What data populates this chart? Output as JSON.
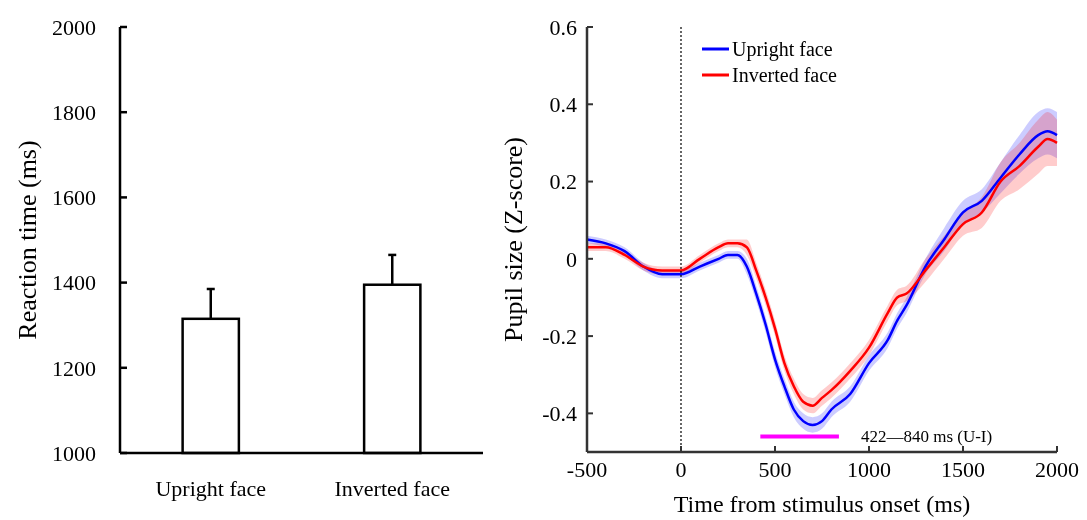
{
  "chart_data": [
    {
      "type": "bar",
      "ylabel": "Reaction time (ms)",
      "categories": [
        "Upright face",
        "Inverted face"
      ],
      "values": [
        1315,
        1395
      ],
      "color": "#ffffff",
      "errors": [
        [
          1315,
          1385
        ],
        [
          1395,
          1465
        ]
      ],
      "ylim": [
        1000,
        2000
      ],
      "yticks": [
        1000,
        1200,
        1400,
        1600,
        1800,
        2000
      ]
    },
    {
      "type": "line",
      "xlabel": "Time from stimulus onset (ms)",
      "ylabel": "Pupil size (Z-score)",
      "x": [
        -500,
        -400,
        -300,
        -200,
        -100,
        0,
        100,
        200,
        250,
        300,
        350,
        400,
        450,
        500,
        550,
        600,
        650,
        700,
        750,
        800,
        900,
        1000,
        1100,
        1150,
        1200,
        1300,
        1400,
        1500,
        1600,
        1700,
        1800,
        1900,
        1950,
        2000
      ],
      "series": [
        {
          "name": "Upright face",
          "color": "#0000ff",
          "values": [
            0.05,
            0.04,
            0.02,
            -0.02,
            -0.04,
            -0.04,
            -0.02,
            0,
            0.01,
            0.01,
            -0.02,
            -0.09,
            -0.17,
            -0.26,
            -0.33,
            -0.39,
            -0.42,
            -0.43,
            -0.42,
            -0.39,
            -0.35,
            -0.27,
            -0.21,
            -0.16,
            -0.12,
            -0.02,
            0.05,
            0.12,
            0.15,
            0.21,
            0.27,
            0.32,
            0.33,
            0.32
          ],
          "lower": [
            0.04,
            0.03,
            0.01,
            -0.03,
            -0.05,
            -0.05,
            -0.03,
            -0.01,
            0,
            0,
            -0.04,
            -0.11,
            -0.19,
            -0.28,
            -0.35,
            -0.41,
            -0.44,
            -0.45,
            -0.44,
            -0.41,
            -0.37,
            -0.29,
            -0.23,
            -0.18,
            -0.14,
            -0.04,
            0.02,
            0.09,
            0.12,
            0.17,
            0.22,
            0.26,
            0.27,
            0.26
          ],
          "upper": [
            0.06,
            0.05,
            0.03,
            -0.01,
            -0.03,
            -0.03,
            -0.01,
            0.01,
            0.02,
            0.02,
            0,
            -0.07,
            -0.15,
            -0.24,
            -0.31,
            -0.37,
            -0.4,
            -0.41,
            -0.4,
            -0.37,
            -0.33,
            -0.25,
            -0.19,
            -0.14,
            -0.1,
            0,
            0.08,
            0.15,
            0.18,
            0.25,
            0.32,
            0.38,
            0.39,
            0.38
          ]
        },
        {
          "name": "Inverted face",
          "color": "#ff0000",
          "values": [
            0.03,
            0.03,
            0.01,
            -0.02,
            -0.03,
            -0.03,
            0,
            0.03,
            0.04,
            0.04,
            0.03,
            -0.03,
            -0.1,
            -0.18,
            -0.27,
            -0.33,
            -0.37,
            -0.38,
            -0.36,
            -0.34,
            -0.29,
            -0.23,
            -0.14,
            -0.1,
            -0.09,
            -0.03,
            0.03,
            0.09,
            0.12,
            0.2,
            0.24,
            0.29,
            0.31,
            0.3
          ],
          "lower": [
            0.02,
            0.02,
            0,
            -0.03,
            -0.04,
            -0.04,
            -0.01,
            0.02,
            0.03,
            0.03,
            0.01,
            -0.05,
            -0.12,
            -0.2,
            -0.29,
            -0.35,
            -0.39,
            -0.4,
            -0.38,
            -0.36,
            -0.31,
            -0.25,
            -0.16,
            -0.12,
            -0.11,
            -0.06,
            0,
            0.06,
            0.08,
            0.15,
            0.18,
            0.22,
            0.24,
            0.24
          ],
          "upper": [
            0.04,
            0.04,
            0.02,
            -0.01,
            -0.02,
            -0.02,
            0.01,
            0.04,
            0.05,
            0.05,
            0.05,
            -0.01,
            -0.08,
            -0.16,
            -0.25,
            -0.31,
            -0.35,
            -0.36,
            -0.34,
            -0.32,
            -0.27,
            -0.21,
            -0.12,
            -0.08,
            -0.07,
            0,
            0.06,
            0.12,
            0.16,
            0.25,
            0.3,
            0.36,
            0.38,
            0.36
          ]
        },
        {
          "color": "#ff00ff",
          "x": [
            422,
            840
          ],
          "values": [
            -0.46,
            -0.46
          ]
        }
      ],
      "xlim": [
        -500,
        2000
      ],
      "xticks": [
        -500,
        0,
        500,
        1000,
        1500,
        2000
      ],
      "ylim": [
        -0.5,
        0.6
      ],
      "yticks": [
        -0.4,
        -0.2,
        0,
        0.2,
        0.4,
        0.6
      ],
      "legend": "top left",
      "ref_lines": [
        {
          "axis": "x",
          "value": 0,
          "color": "#000000",
          "line_style": "dotted"
        }
      ],
      "annotations": [
        {
          "text": "422—840 ms (U-I)",
          "x": 840,
          "y": -0.46
        }
      ]
    }
  ]
}
